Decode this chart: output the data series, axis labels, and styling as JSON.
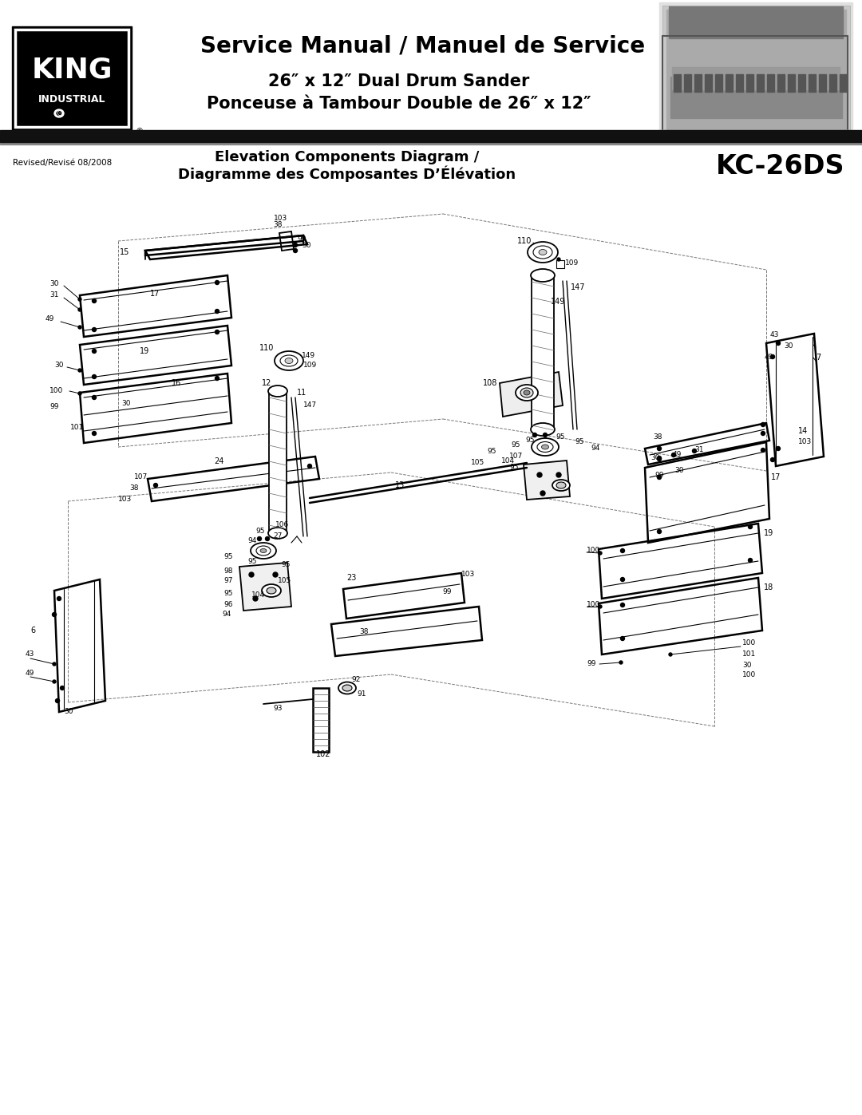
{
  "page_width": 10.8,
  "page_height": 13.97,
  "dpi": 100,
  "bg_color": "#ffffff",
  "header_title": "Service Manual / Manuel de Service",
  "header_sub1": "26″ x 12″ Dual Drum Sander",
  "header_sub2": "Ponceuse à Tambour Double de 26″ x 12″",
  "logo_text_main": "KING",
  "logo_text_sub": "INDUSTRIAL",
  "revised_text": "Revised/Revisé 08/2008",
  "diagram_title1": "Elevation Components Diagram /",
  "diagram_title2": "Diagramme des Composantes D’Élévation",
  "model_number": "KC-26DS"
}
